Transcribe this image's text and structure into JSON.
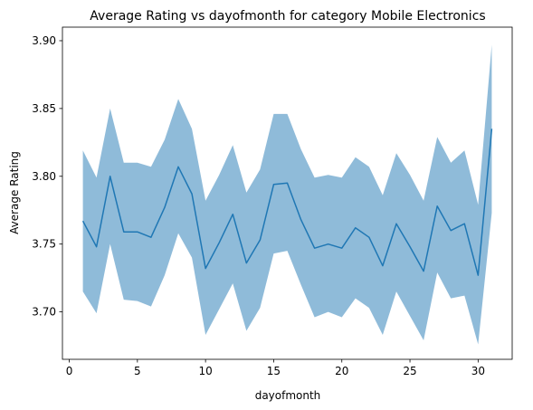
{
  "chart_data": {
    "type": "line",
    "title": "Average Rating vs dayofmonth for category Mobile Electronics",
    "xlabel": "dayofmonth",
    "ylabel": "Average Rating",
    "xlim": [
      -0.5,
      32.5
    ],
    "ylim": [
      3.665,
      3.91
    ],
    "xticks": [
      0,
      5,
      10,
      15,
      20,
      25,
      30
    ],
    "yticks": [
      3.7,
      3.75,
      3.8,
      3.85,
      3.9
    ],
    "xtick_labels": [
      "0",
      "5",
      "10",
      "15",
      "20",
      "25",
      "30"
    ],
    "ytick_labels": [
      "3.70",
      "3.75",
      "3.80",
      "3.85",
      "3.90"
    ],
    "grid": false,
    "line_color": "#1f77b4",
    "band_color": "#1f77b4",
    "x": [
      1,
      2,
      3,
      4,
      5,
      6,
      7,
      8,
      9,
      10,
      11,
      12,
      13,
      14,
      15,
      16,
      17,
      18,
      19,
      20,
      21,
      22,
      23,
      24,
      25,
      26,
      27,
      28,
      29,
      30,
      31
    ],
    "series": [
      {
        "values": [
          3.767,
          3.748,
          3.8,
          3.759,
          3.759,
          3.755,
          3.777,
          3.807,
          3.787,
          3.732,
          3.751,
          3.772,
          3.736,
          3.753,
          3.794,
          3.795,
          3.768,
          3.747,
          3.75,
          3.747,
          3.762,
          3.755,
          3.734,
          3.765,
          3.748,
          3.73,
          3.778,
          3.76,
          3.765,
          3.727,
          3.835
        ],
        "lower": [
          3.715,
          3.699,
          3.75,
          3.709,
          3.708,
          3.704,
          3.727,
          3.758,
          3.74,
          3.683,
          3.702,
          3.721,
          3.686,
          3.703,
          3.743,
          3.745,
          3.72,
          3.696,
          3.7,
          3.696,
          3.71,
          3.703,
          3.683,
          3.715,
          3.697,
          3.679,
          3.729,
          3.71,
          3.712,
          3.676,
          3.773
        ],
        "upper": [
          3.819,
          3.799,
          3.85,
          3.81,
          3.81,
          3.807,
          3.827,
          3.857,
          3.835,
          3.782,
          3.801,
          3.823,
          3.788,
          3.805,
          3.846,
          3.846,
          3.82,
          3.799,
          3.801,
          3.799,
          3.814,
          3.807,
          3.786,
          3.817,
          3.801,
          3.782,
          3.829,
          3.81,
          3.819,
          3.779,
          3.897
        ]
      }
    ]
  }
}
